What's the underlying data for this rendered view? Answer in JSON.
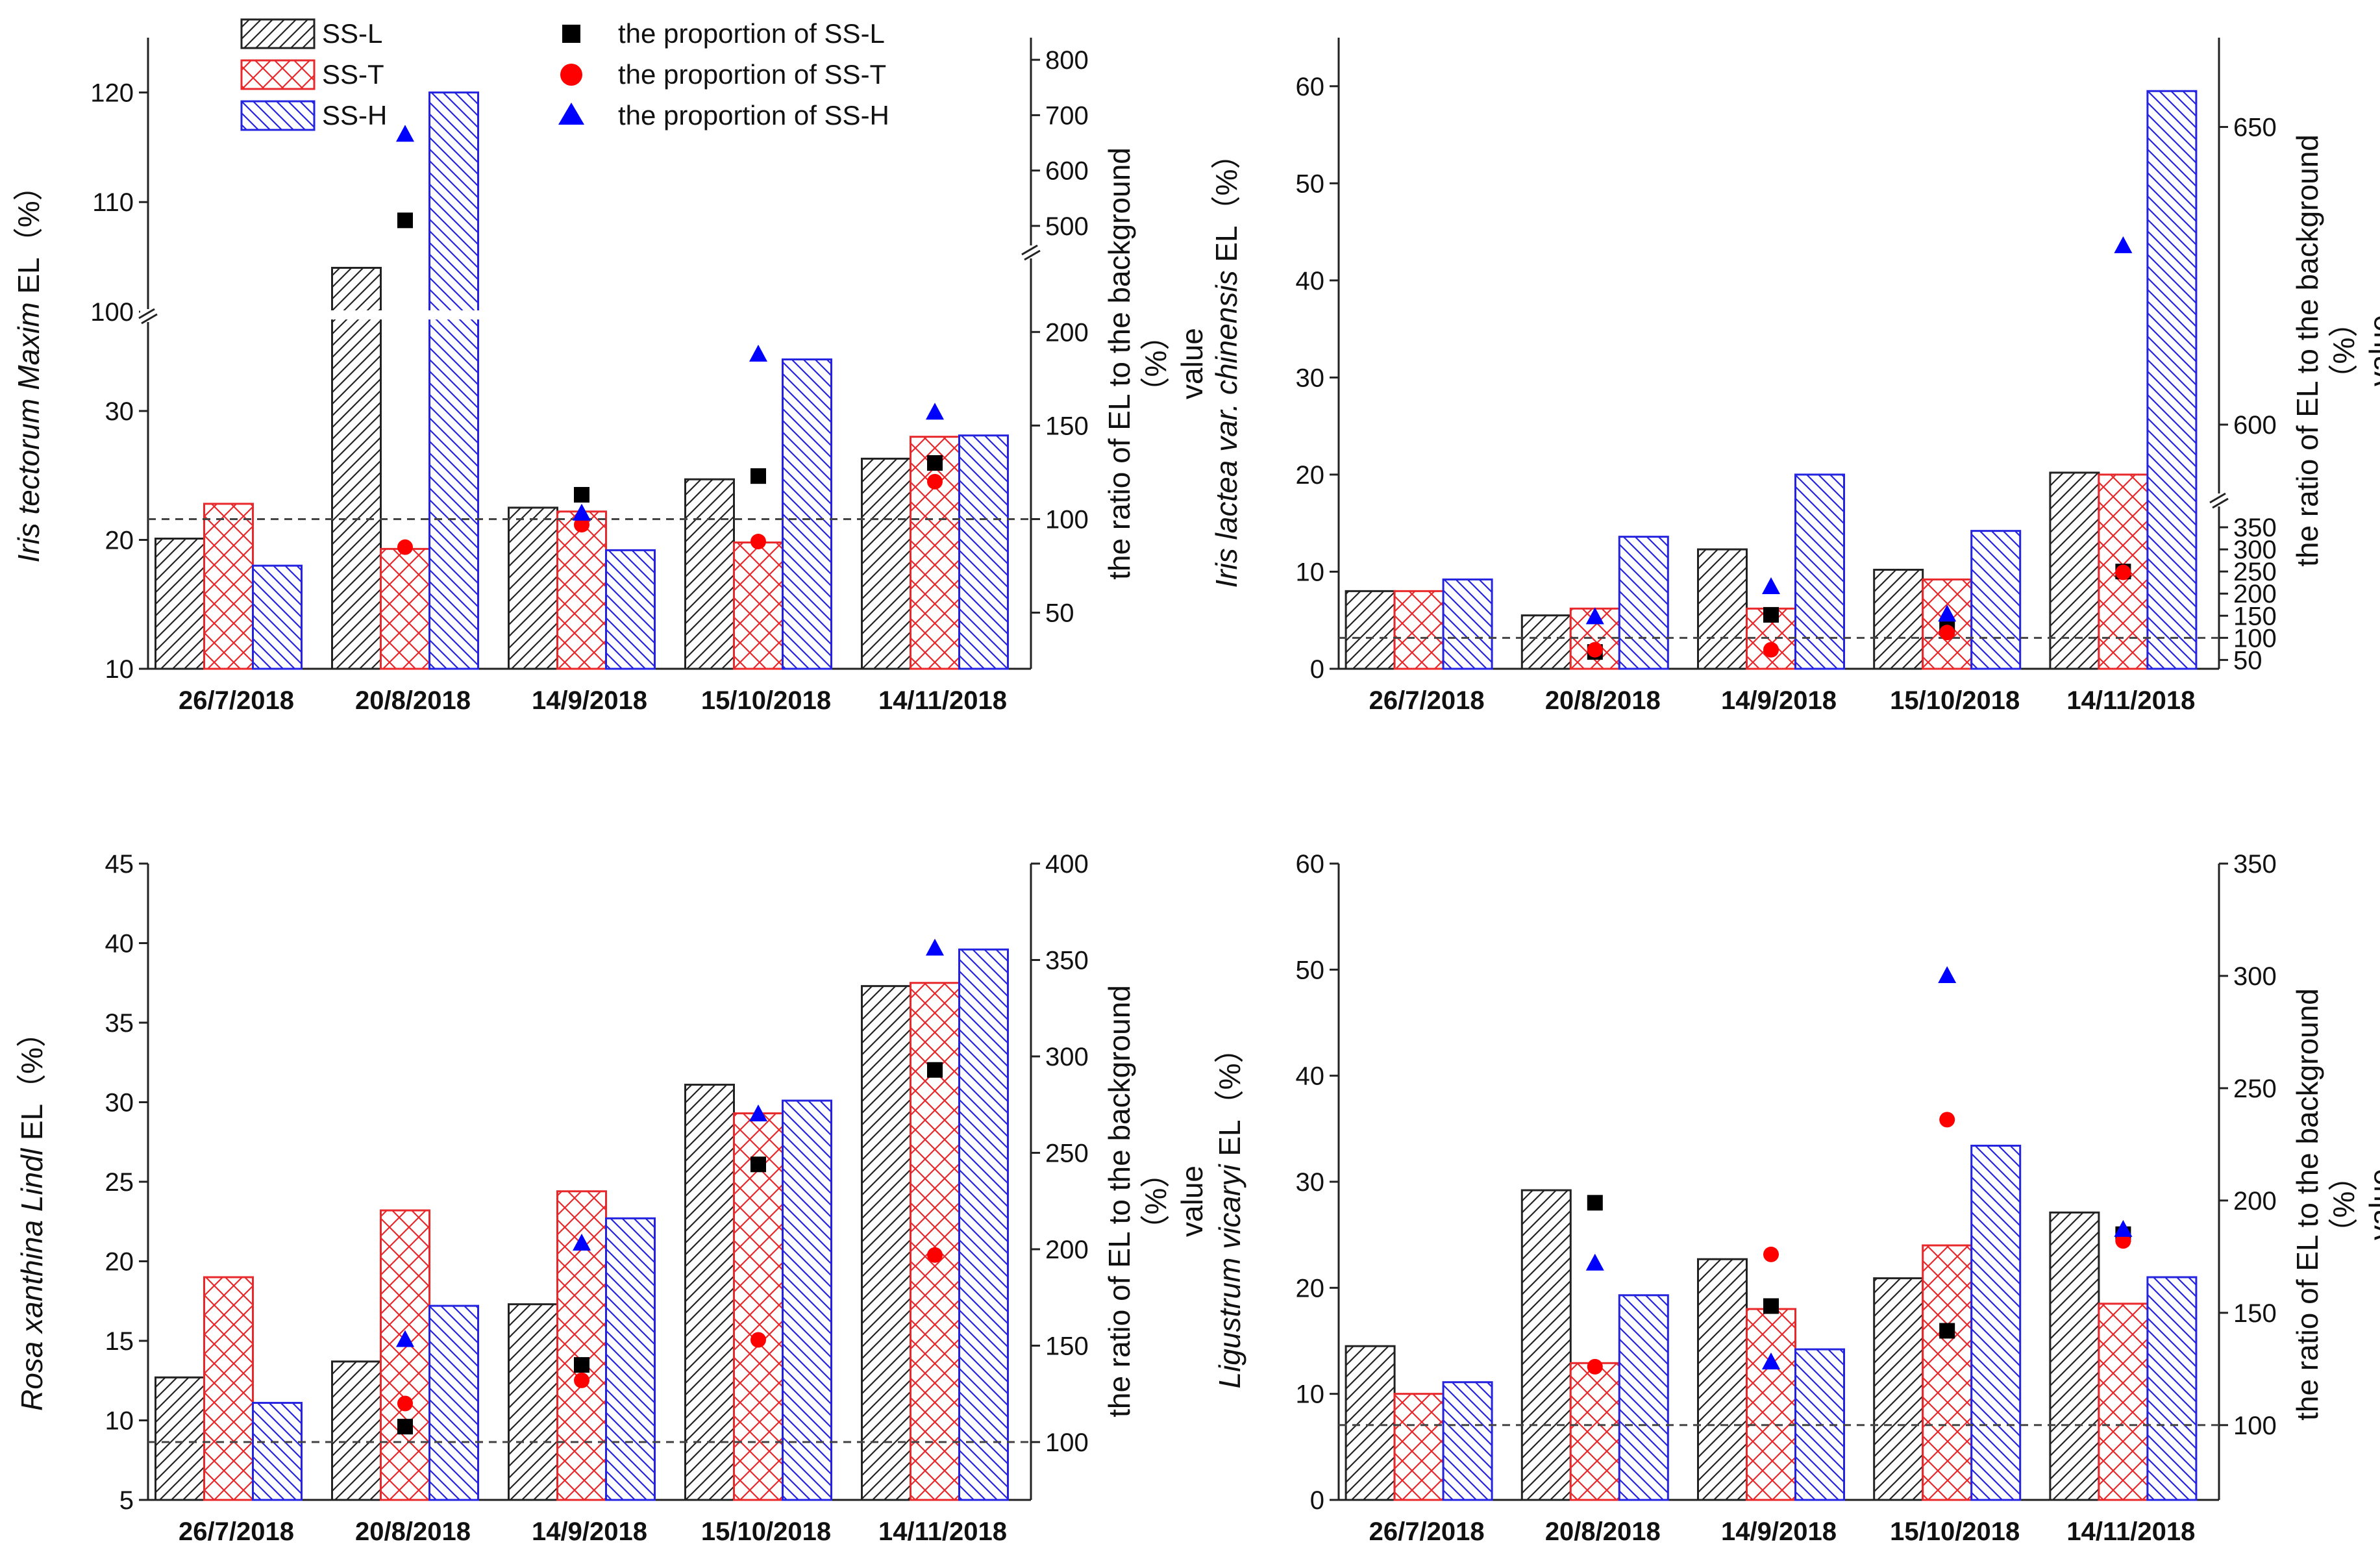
{
  "legend": {
    "bars": [
      {
        "label": "SS-L",
        "color": "#222222",
        "pattern": "hatch-l"
      },
      {
        "label": "SS-T",
        "color": "#e8282b",
        "pattern": "cross-t"
      },
      {
        "label": "SS-H",
        "color": "#2424e0",
        "pattern": "hatch-h"
      }
    ],
    "markers": [
      {
        "label": "the proportion of SS-L",
        "color": "#000000",
        "shape": "square"
      },
      {
        "label": "the proportion of SS-T",
        "color": "#ff0000",
        "shape": "circle"
      },
      {
        "label": "the proportion of SS-H",
        "color": "#0000ff",
        "shape": "triangle"
      }
    ]
  },
  "chart_data": [
    {
      "type": "bar",
      "ylabel_species": "Iris tectorum Maxim",
      "ylabel_suffix": " EL（%）",
      "y2label_line1": "the ratio of EL to the background",
      "y2label_line2": "value",
      "y2label_unit": "（%）",
      "categories": [
        "26/7/2018",
        "20/8/2018",
        "14/9/2018",
        "15/10/2018",
        "14/11/2018"
      ],
      "ylim": [
        10,
        125
      ],
      "y_break": [
        37,
        100
      ],
      "yticks": [
        10,
        20,
        30,
        100,
        110,
        120
      ],
      "y2lim": [
        20,
        840
      ],
      "y2_break": [
        240,
        460
      ],
      "y2ticks": [
        50,
        100,
        150,
        200,
        500,
        600,
        700,
        800
      ],
      "series": [
        {
          "name": "SS-L",
          "values": [
            20.1,
            104,
            22.5,
            24.7,
            26.3
          ]
        },
        {
          "name": "SS-T",
          "values": [
            22.8,
            19.3,
            22.2,
            19.8,
            28.0
          ]
        },
        {
          "name": "SS-H",
          "values": [
            18.0,
            120,
            19.2,
            34.0,
            28.1
          ]
        }
      ],
      "proportion_series": [
        {
          "name": "the proportion of SS-L",
          "values": [
            null,
            510,
            113,
            123,
            130
          ]
        },
        {
          "name": "the proportion of SS-T",
          "values": [
            null,
            85,
            97,
            88,
            120
          ]
        },
        {
          "name": "the proportion of SS-H",
          "values": [
            null,
            665,
            103,
            188,
            157
          ]
        }
      ],
      "reference_line_y2": 100
    },
    {
      "type": "bar",
      "ylabel_species": "Iris lactea var. chinensis",
      "ylabel_suffix": " EL（%）",
      "y2label_line1": "the ratio of EL to the background",
      "y2label_line2": "value",
      "y2label_unit": "（%）",
      "categories": [
        "26/7/2018",
        "20/8/2018",
        "14/9/2018",
        "15/10/2018",
        "14/11/2018"
      ],
      "ylim": [
        0,
        65
      ],
      "yticks": [
        0,
        10,
        20,
        30,
        40,
        50,
        60
      ],
      "y2lim": [
        30,
        665
      ],
      "y2_break": [
        400,
        588
      ],
      "y2ticks": [
        50,
        100,
        150,
        200,
        250,
        300,
        350,
        600,
        650
      ],
      "series": [
        {
          "name": "SS-L",
          "values": [
            8.0,
            5.5,
            12.3,
            10.2,
            20.2
          ]
        },
        {
          "name": "SS-T",
          "values": [
            8.0,
            6.2,
            6.2,
            9.2,
            20.0
          ]
        },
        {
          "name": "SS-H",
          "values": [
            9.2,
            13.6,
            20.0,
            14.2,
            59.5
          ]
        }
      ],
      "proportion_series": [
        {
          "name": "the proportion of SS-L",
          "values": [
            null,
            68,
            152,
            125,
            250
          ]
        },
        {
          "name": "the proportion of SS-T",
          "values": [
            null,
            73,
            73,
            112,
            248
          ]
        },
        {
          "name": "the proportion of SS-H",
          "values": [
            null,
            147,
            215,
            153,
            630
          ]
        }
      ],
      "reference_line_y2": 100
    },
    {
      "type": "bar",
      "ylabel_species": "Rosa xanthina Lindl",
      "ylabel_suffix": " EL（%）",
      "y2label_line1": "the ratio of EL to the background",
      "y2label_line2": "value",
      "y2label_unit": "（%）",
      "categories": [
        "26/7/2018",
        "20/8/2018",
        "14/9/2018",
        "15/10/2018",
        "14/11/2018"
      ],
      "ylim": [
        5,
        45
      ],
      "yticks": [
        5,
        10,
        15,
        20,
        25,
        30,
        35,
        40,
        45
      ],
      "y2lim": [
        70,
        400
      ],
      "y2ticks": [
        100,
        150,
        200,
        250,
        300,
        350,
        400
      ],
      "series": [
        {
          "name": "SS-L",
          "values": [
            12.7,
            13.7,
            17.3,
            31.1,
            37.3
          ]
        },
        {
          "name": "SS-T",
          "values": [
            19.0,
            23.2,
            24.4,
            29.3,
            37.5
          ]
        },
        {
          "name": "SS-H",
          "values": [
            11.1,
            17.2,
            22.7,
            30.1,
            39.6
          ]
        }
      ],
      "proportion_series": [
        {
          "name": "the proportion of SS-L",
          "values": [
            null,
            108,
            140,
            244,
            293
          ]
        },
        {
          "name": "the proportion of SS-T",
          "values": [
            null,
            120,
            132,
            153,
            197
          ]
        },
        {
          "name": "the proportion of SS-H",
          "values": [
            null,
            153,
            203,
            270,
            356
          ]
        }
      ],
      "reference_line_y2": 100
    },
    {
      "type": "bar",
      "ylabel_species": "Ligustrum vicaryi",
      "ylabel_suffix": " EL（%）",
      "y2label_line1": "the ratio of EL to the background",
      "y2label_line2": "value",
      "y2label_unit": "（%）",
      "categories": [
        "26/7/2018",
        "20/8/2018",
        "14/9/2018",
        "15/10/2018",
        "14/11/2018"
      ],
      "ylim": [
        0,
        60
      ],
      "yticks": [
        0,
        10,
        20,
        30,
        40,
        50,
        60
      ],
      "y2lim": [
        66.7,
        350
      ],
      "y2ticks": [
        100,
        150,
        200,
        250,
        300,
        350
      ],
      "series": [
        {
          "name": "SS-L",
          "values": [
            14.5,
            29.2,
            22.7,
            20.9,
            27.1
          ]
        },
        {
          "name": "SS-T",
          "values": [
            10.0,
            12.9,
            18.0,
            24.0,
            18.5
          ]
        },
        {
          "name": "SS-H",
          "values": [
            11.1,
            19.3,
            14.2,
            33.4,
            21.0
          ]
        }
      ],
      "proportion_series": [
        {
          "name": "the proportion of SS-L",
          "values": [
            null,
            199,
            153,
            142,
            185
          ]
        },
        {
          "name": "the proportion of SS-T",
          "values": [
            null,
            126,
            176,
            236,
            182
          ]
        },
        {
          "name": "the proportion of SS-H",
          "values": [
            null,
            172,
            128,
            300,
            187
          ]
        }
      ],
      "reference_line_y2": 100
    }
  ]
}
